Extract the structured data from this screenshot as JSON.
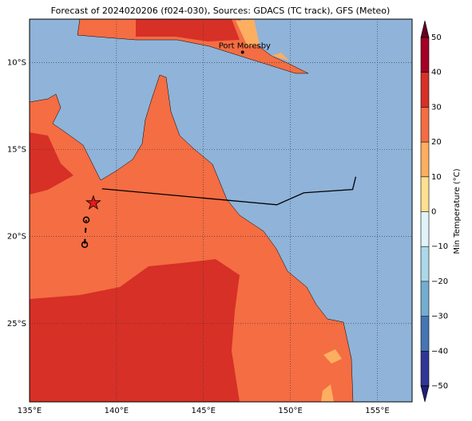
{
  "chart_data": {
    "type": "map",
    "title": "Forecast of 2024020206 (f024-030), Sources: GDACS (TC track), GFS (Meteo)",
    "xlim": [
      135,
      157
    ],
    "ylim": [
      -29.5,
      -7.5
    ],
    "xticks": [
      {
        "value": 135,
        "label": "135°E"
      },
      {
        "value": 140,
        "label": "140°E"
      },
      {
        "value": 145,
        "label": "145°E"
      },
      {
        "value": 150,
        "label": "150°E"
      },
      {
        "value": 155,
        "label": "155°E"
      }
    ],
    "yticks": [
      {
        "value": -10,
        "label": "10°S"
      },
      {
        "value": -15,
        "label": "15°S"
      },
      {
        "value": -20,
        "label": "20°S"
      },
      {
        "value": -25,
        "label": "25°S"
      }
    ],
    "grid": true,
    "places": [
      {
        "name": "Port Moresby",
        "lon": 147.25,
        "lat": -9.4
      }
    ],
    "track": {
      "lon": [
        139.17,
        149.22,
        150.78,
        153.58,
        153.76
      ],
      "lat": [
        -17.25,
        -18.17,
        -17.48,
        -17.29,
        -16.56
      ],
      "color": "#000000"
    },
    "current": {
      "lon": 138.67,
      "lat": -18.07,
      "color": "#e41a1c"
    },
    "past": {
      "lon": [
        138.26,
        138.17
      ],
      "lat": [
        -19.04,
        -20.46
      ]
    },
    "colorbar": {
      "label": "Min Temperature (°C)",
      "lim": [
        -50,
        50
      ],
      "ticks": [
        {
          "value": -50,
          "label": "−50"
        },
        {
          "value": -40,
          "label": "−40"
        },
        {
          "value": -30,
          "label": "−30"
        },
        {
          "value": -20,
          "label": "−20"
        },
        {
          "value": -10,
          "label": "−10"
        },
        0,
        10,
        20,
        30,
        40,
        50
      ],
      "colors": [
        "#313695",
        "#4575b4",
        "#74add1",
        "#abd9e9",
        "#e0f3f8",
        "#fee090",
        "#fdae61",
        "#f46d43",
        "#d73027",
        "#a50026"
      ],
      "under": "#1f1f7a",
      "over": "#67001f"
    }
  }
}
